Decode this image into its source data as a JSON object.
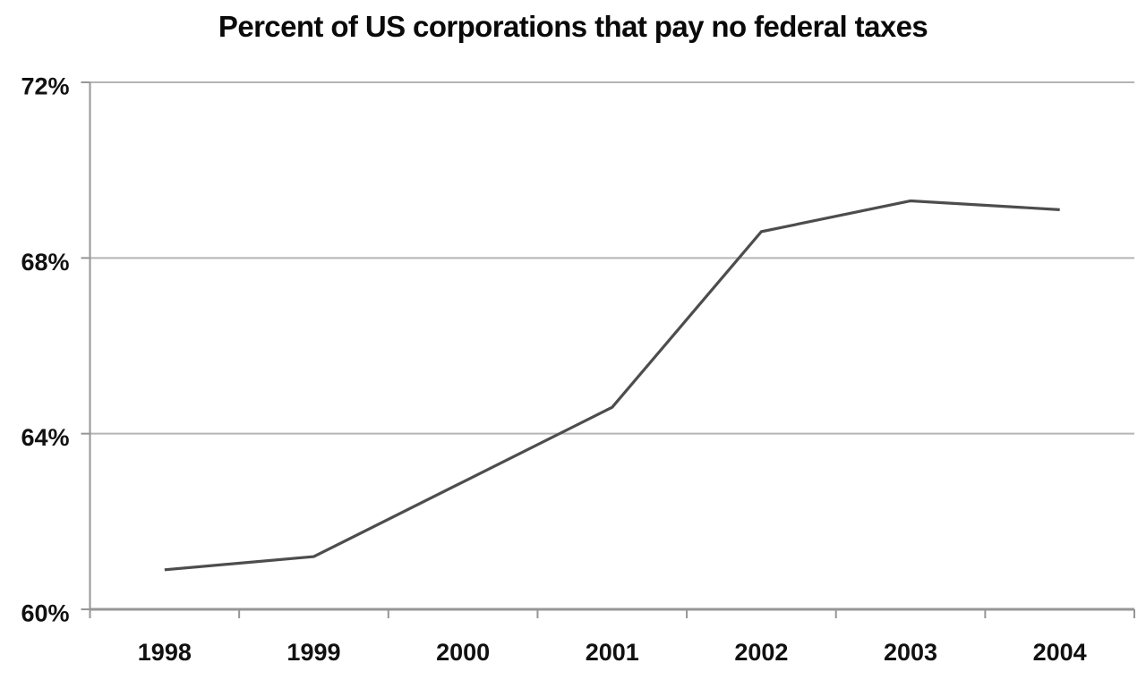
{
  "chart_data": {
    "type": "line",
    "title": "Percent of US corporations that pay no federal taxes",
    "categories": [
      "1998",
      "1999",
      "2000",
      "2001",
      "2002",
      "2003",
      "2004"
    ],
    "values": [
      60.9,
      61.2,
      62.9,
      64.6,
      68.6,
      69.3,
      69.1
    ],
    "xlabel": "",
    "ylabel": "",
    "ylim": [
      60,
      72
    ],
    "y_ticks": [
      {
        "value": 60,
        "label": "60%"
      },
      {
        "value": 64,
        "label": "64%"
      },
      {
        "value": 68,
        "label": "68%"
      },
      {
        "value": 72,
        "label": "72%"
      }
    ],
    "grid": "horizontal",
    "legend": "none",
    "colors": {
      "line": "#4d4d4d",
      "grid": "#b5b5b5",
      "axis": "#969696",
      "text": "#111111",
      "background": "#ffffff"
    }
  }
}
